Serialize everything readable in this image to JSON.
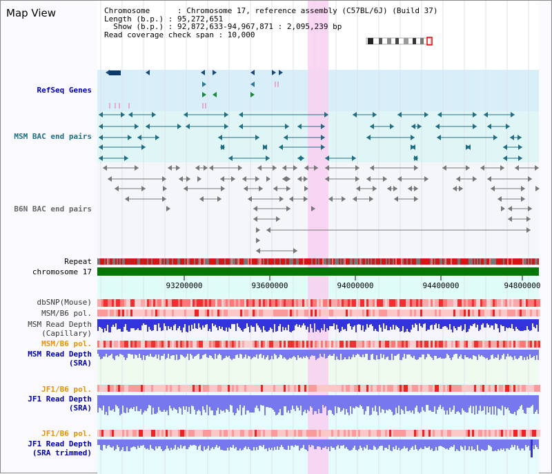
{
  "map": {
    "title": "Map View"
  },
  "info": {
    "line1": "Chromosome      : Chromosome 17, reference assembly (C57BL/6J) (Build 37)",
    "line2": "Length (b.p.) : 95,272,651",
    "line3": "  Show (b.p.) : 92,872,633-94,967,871 : 2,095,239 bp",
    "line4": "Read coverage check span : 10,000"
  },
  "tracks": {
    "refseq": "RefSeq Genes",
    "msm_bac": "MSM BAC end pairs",
    "b6n_bac": "B6N BAC end pairs",
    "repeat": "Repeat",
    "chromosome": "chromosome 17",
    "dbsnp": "dbSNP(Mouse)",
    "msm_pol_1": "MSM/B6 pol.",
    "msm_depth_cap_1": "MSM Read Depth",
    "msm_depth_cap_2": "(Capillary)",
    "msm_pol_2": "MSM/B6 pol.",
    "msm_depth_sra_1": "MSM Read Depth",
    "msm_depth_sra_2": "(SRA)",
    "jf1_pol_1": "JF1/B6 pol.",
    "jf1_depth_1": "JF1 Read Depth",
    "jf1_depth_2": "(SRA)",
    "jf1_pol_2": "JF1/B6 pol.",
    "jf1_trim_1": "JF1 Read Depth",
    "jf1_trim_2": "(SRA trimmed)"
  },
  "axis": {
    "ticks": [
      "93200000",
      "93600000",
      "94000000",
      "94400000",
      "94800000"
    ],
    "start": 92872633,
    "end": 94967871
  },
  "colors": {
    "refseq_band": "#d8eef9",
    "bac_band": "#e0f6f6",
    "teal": "#1e6e84",
    "gray": "#777777",
    "chrom": "#007700",
    "highlight": "#f8cff0",
    "blue_label": "#0000aa",
    "orange_label": "#e69400",
    "depth_blue": "#3333dd",
    "depth_light": "#7777ee"
  }
}
